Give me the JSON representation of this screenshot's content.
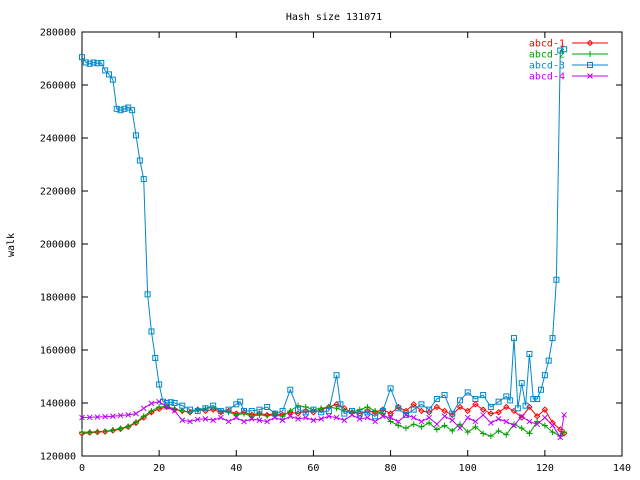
{
  "chart_data": {
    "type": "line",
    "title": "Hash size 131071",
    "xlabel": "",
    "ylabel": "walk",
    "xlim": [
      0,
      140
    ],
    "ylim": [
      120000,
      280000
    ],
    "x_ticks": [
      0,
      20,
      40,
      60,
      80,
      100,
      120,
      140
    ],
    "y_ticks": [
      120000,
      140000,
      160000,
      180000,
      200000,
      220000,
      240000,
      260000,
      280000
    ],
    "x_tick_labels": [
      "0",
      "20",
      "40",
      "60",
      "80",
      "100",
      "120",
      "140"
    ],
    "y_tick_labels": [
      "120000",
      "140000",
      "160000",
      "180000",
      "200000",
      "220000",
      "240000",
      "260000",
      "280000"
    ],
    "grid": false,
    "legend_position": "top-right",
    "series": [
      {
        "name": "abcd-1",
        "color": "#ff0000",
        "marker": "diamond",
        "x": [
          0,
          2,
          4,
          6,
          8,
          10,
          12,
          14,
          16,
          18,
          20,
          22,
          24,
          26,
          28,
          30,
          32,
          34,
          36,
          38,
          40,
          42,
          44,
          46,
          48,
          50,
          52,
          54,
          56,
          58,
          60,
          62,
          64,
          66,
          68,
          70,
          72,
          74,
          76,
          78,
          80,
          82,
          84,
          86,
          88,
          90,
          92,
          94,
          96,
          98,
          100,
          102,
          104,
          106,
          108,
          110,
          112,
          114,
          116,
          118,
          120,
          122,
          124,
          125
        ],
        "y": [
          128500,
          128800,
          129000,
          129200,
          129600,
          130200,
          131000,
          132500,
          134500,
          136500,
          137800,
          138500,
          137500,
          137000,
          136500,
          137500,
          137000,
          137500,
          136500,
          137000,
          136000,
          136500,
          135500,
          136000,
          135500,
          136000,
          135500,
          136500,
          136000,
          137000,
          136500,
          137500,
          138500,
          139500,
          138000,
          136500,
          136000,
          137000,
          136500,
          137500,
          136000,
          138500,
          137000,
          139500,
          137000,
          136500,
          138500,
          137000,
          135500,
          138500,
          137000,
          139500,
          137500,
          136000,
          136500,
          138500,
          137000,
          134500,
          138500,
          135000,
          137500,
          132500,
          130000,
          128500
        ]
      },
      {
        "name": "abcd-2",
        "color": "#00a000",
        "marker": "plus",
        "x": [
          0,
          2,
          4,
          6,
          8,
          10,
          12,
          14,
          16,
          18,
          20,
          22,
          24,
          26,
          28,
          30,
          32,
          34,
          36,
          38,
          40,
          42,
          44,
          46,
          48,
          50,
          52,
          54,
          56,
          58,
          60,
          62,
          64,
          66,
          68,
          70,
          72,
          74,
          76,
          78,
          80,
          82,
          84,
          86,
          88,
          90,
          92,
          94,
          96,
          98,
          100,
          102,
          104,
          106,
          108,
          110,
          112,
          114,
          116,
          118,
          120,
          122,
          124,
          125
        ],
        "y": [
          129000,
          129000,
          129200,
          129300,
          129800,
          130400,
          131200,
          132800,
          135000,
          137000,
          138500,
          138800,
          137800,
          137000,
          136500,
          137500,
          138000,
          138200,
          137000,
          136500,
          135500,
          136000,
          135000,
          135500,
          135200,
          135500,
          135000,
          137000,
          139000,
          138500,
          137500,
          138000,
          138500,
          138000,
          137000,
          136500,
          137500,
          138500,
          137000,
          136000,
          133000,
          131500,
          130500,
          132000,
          131000,
          132500,
          130000,
          131500,
          129500,
          132000,
          129000,
          131000,
          128500,
          127500,
          129500,
          128000,
          132000,
          130500,
          128500,
          133000,
          131500,
          129000,
          127500,
          129000
        ]
      },
      {
        "name": "abcd-3",
        "color": "#0088cc",
        "marker": "square",
        "x": [
          0,
          1,
          2,
          3,
          4,
          5,
          6,
          7,
          8,
          9,
          10,
          11,
          12,
          13,
          14,
          15,
          16,
          17,
          18,
          19,
          20,
          21,
          22,
          23,
          24,
          26,
          28,
          30,
          32,
          34,
          36,
          38,
          40,
          41,
          42,
          44,
          46,
          48,
          50,
          52,
          54,
          56,
          58,
          60,
          62,
          64,
          66,
          67,
          68,
          70,
          72,
          74,
          76,
          78,
          80,
          82,
          84,
          86,
          88,
          90,
          92,
          94,
          96,
          98,
          100,
          102,
          104,
          106,
          108,
          110,
          111,
          112,
          113,
          114,
          115,
          116,
          117,
          118,
          119,
          120,
          121,
          122,
          123,
          124,
          125
        ],
        "y": [
          270500,
          268500,
          268000,
          268500,
          268200,
          268300,
          265500,
          264000,
          262000,
          251000,
          250500,
          251000,
          251500,
          250500,
          241000,
          231500,
          224500,
          181000,
          167000,
          157000,
          147000,
          140500,
          140000,
          140300,
          140000,
          139000,
          137500,
          137000,
          138000,
          139000,
          137000,
          137500,
          139500,
          140500,
          137000,
          137000,
          137500,
          138500,
          136000,
          137000,
          145000,
          137500,
          136500,
          137500,
          136500,
          137000,
          150500,
          139500,
          136000,
          137000,
          136000,
          136500,
          135000,
          137000,
          145500,
          138000,
          135500,
          137500,
          139500,
          137500,
          141500,
          143000,
          136000,
          141000,
          144000,
          141500,
          143000,
          138500,
          140500,
          142500,
          141000,
          164500,
          138000,
          147500,
          139000,
          158500,
          141500,
          141500,
          145000,
          150500,
          156000,
          164500,
          186500,
          273000,
          273500
        ]
      },
      {
        "name": "abcd-4",
        "color": "#c000ff",
        "marker": "x",
        "x": [
          0,
          2,
          4,
          6,
          8,
          10,
          12,
          14,
          16,
          18,
          20,
          22,
          24,
          26,
          28,
          30,
          32,
          34,
          36,
          38,
          40,
          42,
          44,
          46,
          48,
          50,
          52,
          54,
          56,
          58,
          60,
          62,
          64,
          66,
          68,
          70,
          72,
          74,
          76,
          78,
          80,
          82,
          84,
          86,
          88,
          90,
          92,
          94,
          96,
          98,
          100,
          102,
          104,
          106,
          108,
          110,
          112,
          114,
          116,
          118,
          120,
          122,
          124,
          125
        ],
        "y": [
          134500,
          134600,
          134700,
          134800,
          135000,
          135300,
          135500,
          136000,
          138000,
          139800,
          140500,
          138500,
          137000,
          133500,
          133000,
          133800,
          134000,
          133500,
          134500,
          133000,
          134500,
          133000,
          134000,
          133500,
          133000,
          134500,
          133500,
          135000,
          134000,
          134500,
          133500,
          134000,
          135000,
          134500,
          133500,
          135500,
          134000,
          134500,
          133000,
          135000,
          134500,
          133000,
          135500,
          134500,
          133000,
          134500,
          132000,
          135000,
          133500,
          130500,
          134500,
          133000,
          135500,
          132500,
          134000,
          133000,
          131500,
          135000,
          133000,
          132000,
          134500,
          131500,
          127000,
          135500
        ]
      }
    ]
  }
}
